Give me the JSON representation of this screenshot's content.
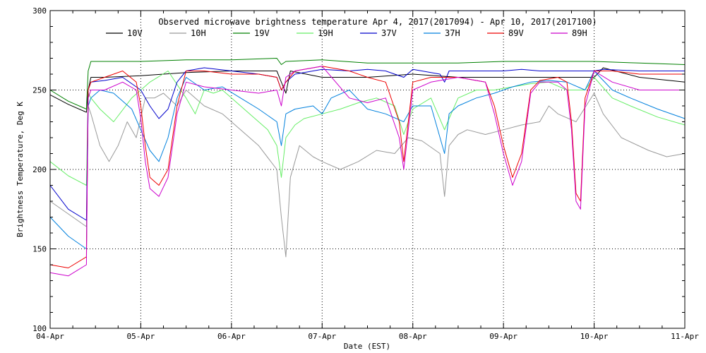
{
  "chart_data": {
    "type": "line",
    "title": "Observed microwave brightness temperature Apr  4, 2017(2017094) - Apr 10, 2017(2017100)",
    "xlabel": "Date (EST)",
    "ylabel": "Brightness Temperature, Deg K",
    "ylim": [
      100,
      300
    ],
    "xlim": [
      0,
      7
    ],
    "y_ticks": [
      100,
      150,
      200,
      250,
      300
    ],
    "x_ticks": [
      {
        "value": 0,
        "label": "04-Apr"
      },
      {
        "value": 1,
        "label": "05-Apr"
      },
      {
        "value": 2,
        "label": "06-Apr"
      },
      {
        "value": 3,
        "label": "07-Apr"
      },
      {
        "value": 4,
        "label": "08-Apr"
      },
      {
        "value": 5,
        "label": "09-Apr"
      },
      {
        "value": 6,
        "label": "10-Apr"
      },
      {
        "value": 7,
        "label": "11-Apr"
      }
    ],
    "grid": true,
    "legend_position": "top",
    "series": [
      {
        "name": "10V",
        "color": "#000000",
        "x": [
          0,
          0.2,
          0.4,
          0.42,
          0.45,
          0.6,
          1.0,
          1.5,
          2.0,
          2.5,
          2.55,
          2.6,
          2.65,
          3.0,
          3.5,
          4.0,
          4.5,
          5.0,
          5.5,
          6.0,
          6.05,
          6.1,
          6.5,
          7.0
        ],
        "y": [
          247,
          241,
          236,
          250,
          258,
          258,
          259,
          261,
          262,
          262,
          255,
          248,
          262,
          258,
          258,
          260,
          258,
          258,
          258,
          258,
          261,
          264,
          258,
          255
        ]
      },
      {
        "name": "10H",
        "color": "#999999",
        "x": [
          0,
          0.2,
          0.4,
          0.42,
          0.45,
          0.55,
          0.65,
          0.75,
          0.85,
          0.95,
          1.05,
          1.15,
          1.25,
          1.4,
          1.5,
          1.7,
          1.9,
          2.1,
          2.3,
          2.5,
          2.55,
          2.6,
          2.65,
          2.75,
          2.9,
          3.0,
          3.2,
          3.4,
          3.6,
          3.8,
          3.95,
          4.1,
          4.3,
          4.35,
          4.4,
          4.5,
          4.6,
          4.8,
          5.0,
          5.2,
          5.4,
          5.5,
          5.6,
          5.8,
          6.0,
          6.1,
          6.3,
          6.6,
          6.8,
          7.0
        ],
        "y": [
          180,
          172,
          164,
          240,
          235,
          215,
          205,
          215,
          230,
          220,
          245,
          245,
          248,
          240,
          250,
          240,
          235,
          225,
          215,
          200,
          170,
          145,
          195,
          215,
          208,
          205,
          200,
          205,
          212,
          210,
          220,
          218,
          210,
          183,
          215,
          222,
          225,
          222,
          225,
          228,
          230,
          240,
          235,
          230,
          248,
          235,
          220,
          212,
          208,
          210
        ]
      },
      {
        "name": "19V",
        "color": "#008000",
        "x": [
          0,
          0.2,
          0.4,
          0.42,
          0.45,
          1.0,
          1.5,
          2.0,
          2.5,
          2.55,
          2.6,
          3.0,
          3.5,
          4.0,
          4.5,
          5.0,
          5.5,
          6.0,
          6.5,
          7.0
        ],
        "y": [
          250,
          243,
          238,
          262,
          268,
          268,
          269,
          269,
          270,
          266,
          268,
          269,
          267,
          267,
          267,
          268,
          268,
          268,
          267,
          266
        ]
      },
      {
        "name": "19H",
        "color": "#66ee66",
        "x": [
          0,
          0.2,
          0.4,
          0.42,
          0.45,
          0.55,
          0.7,
          0.9,
          1.1,
          1.3,
          1.5,
          1.6,
          1.7,
          1.8,
          1.9,
          2.0,
          2.2,
          2.4,
          2.5,
          2.55,
          2.6,
          2.7,
          2.8,
          3.0,
          3.2,
          3.4,
          3.6,
          3.8,
          3.9,
          4.0,
          4.2,
          4.35,
          4.4,
          4.5,
          4.7,
          4.9,
          5.1,
          5.3,
          5.5,
          5.7,
          5.9,
          6.0,
          6.2,
          6.4,
          6.7,
          7.0
        ],
        "y": [
          205,
          196,
          190,
          248,
          245,
          238,
          230,
          245,
          255,
          262,
          245,
          235,
          250,
          248,
          250,
          245,
          235,
          225,
          215,
          195,
          220,
          228,
          232,
          235,
          238,
          242,
          245,
          240,
          222,
          238,
          245,
          225,
          232,
          245,
          250,
          250,
          252,
          254,
          255,
          250,
          250,
          258,
          245,
          240,
          233,
          228
        ]
      },
      {
        "name": "37V",
        "color": "#0000cc",
        "x": [
          0,
          0.2,
          0.4,
          0.42,
          0.45,
          0.6,
          0.8,
          1.0,
          1.1,
          1.2,
          1.3,
          1.4,
          1.5,
          1.7,
          2.0,
          2.3,
          2.5,
          2.55,
          2.6,
          2.7,
          3.0,
          3.3,
          3.5,
          3.7,
          3.9,
          4.0,
          4.3,
          4.35,
          4.4,
          4.6,
          4.8,
          5.0,
          5.2,
          5.4,
          5.6,
          5.8,
          6.0,
          6.1,
          6.5,
          7.0
        ],
        "y": [
          190,
          175,
          168,
          250,
          255,
          256,
          258,
          250,
          240,
          232,
          238,
          255,
          262,
          264,
          262,
          260,
          258,
          250,
          255,
          260,
          263,
          262,
          263,
          262,
          258,
          263,
          260,
          255,
          262,
          262,
          262,
          262,
          263,
          262,
          262,
          262,
          262,
          263,
          262,
          262
        ]
      },
      {
        "name": "37H",
        "color": "#0080dd",
        "x": [
          0,
          0.2,
          0.4,
          0.42,
          0.45,
          0.55,
          0.7,
          0.9,
          1.0,
          1.1,
          1.2,
          1.3,
          1.4,
          1.5,
          1.7,
          1.9,
          2.1,
          2.3,
          2.5,
          2.55,
          2.6,
          2.7,
          2.9,
          3.0,
          3.1,
          3.3,
          3.5,
          3.7,
          3.9,
          4.0,
          4.2,
          4.35,
          4.4,
          4.5,
          4.7,
          4.9,
          5.1,
          5.3,
          5.5,
          5.7,
          5.9,
          6.0,
          6.2,
          6.4,
          6.7,
          7.0
        ],
        "y": [
          170,
          158,
          150,
          240,
          245,
          250,
          248,
          238,
          225,
          212,
          205,
          220,
          245,
          258,
          250,
          252,
          245,
          238,
          230,
          215,
          235,
          238,
          240,
          235,
          245,
          250,
          238,
          235,
          230,
          240,
          240,
          210,
          235,
          240,
          245,
          248,
          252,
          255,
          256,
          255,
          250,
          262,
          250,
          245,
          238,
          232
        ]
      },
      {
        "name": "89V",
        "color": "#ee0000",
        "x": [
          0,
          0.2,
          0.4,
          0.42,
          0.45,
          0.6,
          0.8,
          0.95,
          1.0,
          1.05,
          1.1,
          1.2,
          1.3,
          1.4,
          1.5,
          1.7,
          2.0,
          2.3,
          2.5,
          2.55,
          2.6,
          2.7,
          3.0,
          3.3,
          3.5,
          3.7,
          3.85,
          3.9,
          4.0,
          4.2,
          4.5,
          4.8,
          4.9,
          5.0,
          5.1,
          5.2,
          5.3,
          5.4,
          5.6,
          5.7,
          5.75,
          5.8,
          5.85,
          5.9,
          6.0,
          6.2,
          6.5,
          7.0
        ],
        "y": [
          140,
          138,
          145,
          250,
          255,
          258,
          262,
          255,
          240,
          215,
          195,
          190,
          200,
          240,
          262,
          262,
          260,
          260,
          258,
          250,
          255,
          262,
          265,
          262,
          258,
          255,
          230,
          205,
          255,
          258,
          258,
          255,
          240,
          215,
          195,
          210,
          250,
          256,
          258,
          255,
          230,
          185,
          180,
          245,
          262,
          262,
          260,
          260
        ]
      },
      {
        "name": "89H",
        "color": "#cc00cc",
        "x": [
          0,
          0.2,
          0.4,
          0.42,
          0.45,
          0.6,
          0.8,
          0.95,
          1.0,
          1.05,
          1.1,
          1.2,
          1.3,
          1.4,
          1.5,
          1.7,
          2.0,
          2.3,
          2.5,
          2.55,
          2.6,
          2.7,
          3.0,
          3.3,
          3.5,
          3.7,
          3.85,
          3.9,
          4.0,
          4.2,
          4.5,
          4.8,
          4.9,
          5.0,
          5.1,
          5.2,
          5.3,
          5.4,
          5.6,
          5.7,
          5.75,
          5.8,
          5.85,
          5.9,
          6.0,
          6.2,
          6.5,
          7.0
        ],
        "y": [
          135,
          133,
          140,
          245,
          250,
          250,
          255,
          250,
          232,
          205,
          188,
          183,
          195,
          235,
          255,
          252,
          250,
          248,
          250,
          240,
          258,
          262,
          265,
          245,
          242,
          245,
          220,
          200,
          250,
          255,
          258,
          255,
          235,
          210,
          190,
          205,
          248,
          255,
          255,
          250,
          225,
          180,
          175,
          240,
          262,
          255,
          250,
          250
        ]
      }
    ]
  }
}
